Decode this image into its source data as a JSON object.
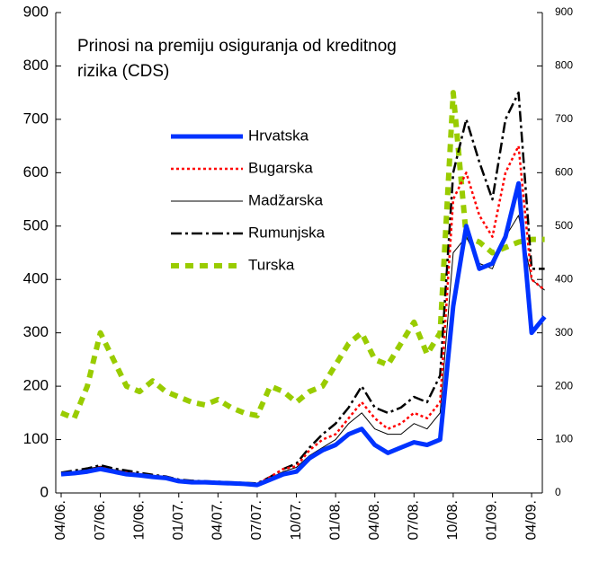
{
  "chart_data": {
    "type": "line",
    "title": "Prinosi na premiju osiguranja od kreditnog rizika (CDS)",
    "categories": [
      "04/06.",
      null,
      null,
      "07/06.",
      null,
      null,
      "10/06.",
      null,
      null,
      "01/07.",
      null,
      null,
      "04/07.",
      null,
      null,
      "07/07.",
      null,
      null,
      "10/07.",
      null,
      null,
      "01/08.",
      null,
      null,
      "04/08.",
      null,
      null,
      "07/08.",
      null,
      null,
      "10/08.",
      null,
      null,
      "01/09.",
      null,
      null,
      "04/09.",
      null
    ],
    "series": [
      {
        "name": "Hrvatska",
        "color": "#0033ff",
        "values": [
          35,
          37,
          40,
          45,
          40,
          35,
          33,
          30,
          28,
          22,
          20,
          20,
          19,
          18,
          17,
          15,
          25,
          35,
          40,
          65,
          80,
          90,
          110,
          120,
          90,
          75,
          85,
          95,
          90,
          100,
          350,
          500,
          420,
          430,
          480,
          580,
          300,
          330
        ]
      },
      {
        "name": "Bugarska",
        "color": "#ff0000",
        "values": [
          35,
          38,
          42,
          48,
          42,
          38,
          35,
          32,
          30,
          24,
          22,
          21,
          20,
          19,
          18,
          17,
          30,
          45,
          50,
          80,
          100,
          110,
          140,
          170,
          140,
          120,
          130,
          150,
          140,
          170,
          550,
          600,
          520,
          480,
          600,
          650,
          400,
          380
        ]
      },
      {
        "name": "Madžarska",
        "color": "#000000",
        "values": [
          38,
          40,
          45,
          50,
          44,
          40,
          36,
          33,
          30,
          24,
          22,
          21,
          20,
          19,
          18,
          17,
          28,
          40,
          48,
          70,
          85,
          100,
          130,
          150,
          120,
          110,
          110,
          130,
          120,
          150,
          450,
          480,
          430,
          420,
          480,
          520,
          400,
          380
        ]
      },
      {
        "name": "Rumunjska",
        "color": "#000000",
        "values": [
          38,
          42,
          46,
          52,
          46,
          42,
          38,
          34,
          31,
          25,
          23,
          22,
          21,
          20,
          19,
          18,
          30,
          45,
          55,
          85,
          110,
          130,
          160,
          200,
          160,
          150,
          160,
          180,
          170,
          220,
          600,
          700,
          620,
          550,
          700,
          750,
          420,
          420
        ]
      },
      {
        "name": "Turska",
        "color": "#99cc00",
        "values": [
          150,
          140,
          200,
          300,
          250,
          200,
          190,
          210,
          190,
          180,
          170,
          165,
          175,
          160,
          150,
          145,
          200,
          190,
          170,
          190,
          200,
          240,
          280,
          300,
          250,
          240,
          280,
          320,
          260,
          300,
          750,
          480,
          470,
          450,
          460,
          470,
          475,
          475
        ]
      }
    ],
    "ylim": [
      0,
      900
    ],
    "yticks": [
      0,
      100,
      200,
      300,
      400,
      500,
      600,
      700,
      800,
      900
    ],
    "y2lim": [
      0,
      900
    ],
    "y2ticks": [
      0,
      100,
      200,
      300,
      400,
      500,
      600,
      700,
      800,
      900
    ],
    "grid": false
  }
}
